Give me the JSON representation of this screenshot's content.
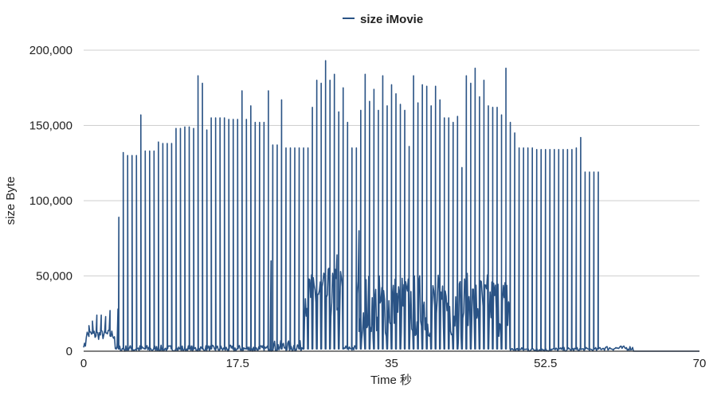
{
  "chart_data": {
    "type": "line",
    "title": "",
    "xlabel": "Time 秒",
    "ylabel": "size Byte",
    "xlim": [
      0,
      70
    ],
    "ylim": [
      0,
      200000
    ],
    "x_ticks": [
      "0",
      "17.5",
      "35",
      "52.5",
      "70"
    ],
    "y_ticks": [
      "0",
      "50,000",
      "100,000",
      "150,000",
      "200,000"
    ],
    "grid": "horizontal",
    "legend_position": "top-center",
    "series": [
      {
        "name": "size iMovie",
        "color": "#2a5385",
        "spikes": [
          [
            4.0,
            89000
          ],
          [
            4.5,
            132000
          ],
          [
            5.0,
            130000
          ],
          [
            5.5,
            130000
          ],
          [
            6.0,
            130000
          ],
          [
            6.5,
            157000
          ],
          [
            7.0,
            133000
          ],
          [
            7.5,
            133000
          ],
          [
            8.0,
            133000
          ],
          [
            8.5,
            139000
          ],
          [
            9.0,
            138000
          ],
          [
            9.5,
            138000
          ],
          [
            10.0,
            138000
          ],
          [
            10.5,
            148000
          ],
          [
            11.0,
            148000
          ],
          [
            11.5,
            149000
          ],
          [
            12.0,
            149000
          ],
          [
            12.5,
            148000
          ],
          [
            13.0,
            183000
          ],
          [
            13.5,
            178000
          ],
          [
            14.0,
            147000
          ],
          [
            14.5,
            155000
          ],
          [
            15.0,
            155000
          ],
          [
            15.5,
            155000
          ],
          [
            16.0,
            155000
          ],
          [
            16.5,
            154000
          ],
          [
            17.0,
            154000
          ],
          [
            17.5,
            154000
          ],
          [
            18.0,
            173000
          ],
          [
            18.5,
            154000
          ],
          [
            19.0,
            163000
          ],
          [
            19.5,
            152000
          ],
          [
            20.0,
            152000
          ],
          [
            20.5,
            152000
          ],
          [
            21.0,
            173000
          ],
          [
            21.5,
            137000
          ],
          [
            22.0,
            137000
          ],
          [
            22.5,
            167000
          ],
          [
            23.0,
            135000
          ],
          [
            23.5,
            135000
          ],
          [
            24.0,
            135000
          ],
          [
            24.5,
            135000
          ],
          [
            25.0,
            135000
          ],
          [
            25.5,
            135000
          ],
          [
            26.0,
            162000
          ],
          [
            26.5,
            180000
          ],
          [
            27.0,
            178000
          ],
          [
            27.5,
            193000
          ],
          [
            28.0,
            180000
          ],
          [
            28.5,
            184000
          ],
          [
            29.0,
            159000
          ],
          [
            29.5,
            175000
          ],
          [
            30.0,
            152000
          ],
          [
            30.5,
            135000
          ],
          [
            31.0,
            135000
          ],
          [
            31.5,
            160000
          ],
          [
            32.0,
            184000
          ],
          [
            32.5,
            166000
          ],
          [
            33.0,
            174000
          ],
          [
            33.5,
            160000
          ],
          [
            34.0,
            183000
          ],
          [
            34.5,
            163000
          ],
          [
            35.0,
            177000
          ],
          [
            35.5,
            171000
          ],
          [
            36.0,
            164000
          ],
          [
            36.5,
            160000
          ],
          [
            37.0,
            136000
          ],
          [
            37.5,
            183000
          ],
          [
            38.0,
            165000
          ],
          [
            38.5,
            177000
          ],
          [
            39.0,
            176000
          ],
          [
            39.5,
            163000
          ],
          [
            40.0,
            176000
          ],
          [
            40.5,
            167000
          ],
          [
            41.0,
            155000
          ],
          [
            41.5,
            155000
          ],
          [
            42.0,
            152000
          ],
          [
            42.5,
            156000
          ],
          [
            43.0,
            122000
          ],
          [
            43.5,
            183000
          ],
          [
            44.0,
            178000
          ],
          [
            44.5,
            188000
          ],
          [
            45.0,
            169000
          ],
          [
            45.5,
            180000
          ],
          [
            46.0,
            163000
          ],
          [
            46.5,
            162000
          ],
          [
            47.0,
            162000
          ],
          [
            47.5,
            157000
          ],
          [
            48.0,
            188000
          ],
          [
            48.5,
            152000
          ],
          [
            49.0,
            145000
          ],
          [
            49.5,
            135000
          ],
          [
            50.0,
            135000
          ],
          [
            50.5,
            135000
          ],
          [
            51.0,
            135000
          ],
          [
            51.5,
            134000
          ],
          [
            52.0,
            134000
          ],
          [
            52.5,
            134000
          ],
          [
            53.0,
            134000
          ],
          [
            53.5,
            134000
          ],
          [
            54.0,
            134000
          ],
          [
            54.5,
            134000
          ],
          [
            55.0,
            134000
          ],
          [
            55.5,
            134000
          ],
          [
            56.0,
            135000
          ],
          [
            56.5,
            142000
          ],
          [
            57.0,
            119000
          ],
          [
            57.5,
            119000
          ],
          [
            58.0,
            119000
          ],
          [
            58.5,
            119000
          ]
        ],
        "baseline_segments": [
          {
            "x_start": 0.0,
            "x_end": 0.3,
            "level": 4000,
            "noise": 1500
          },
          {
            "x_start": 0.3,
            "x_end": 3.6,
            "level": 11000,
            "noise": 3500
          },
          {
            "x_start": 3.6,
            "x_end": 4.0,
            "level": 2000,
            "noise": 1500
          },
          {
            "x_start": 4.0,
            "x_end": 21.0,
            "level": 1500,
            "noise": 2500
          },
          {
            "x_start": 21.0,
            "x_end": 25.0,
            "level": 3000,
            "noise": 4000
          },
          {
            "x_start": 25.0,
            "x_end": 29.5,
            "level": 38000,
            "noise": 18000
          },
          {
            "x_start": 29.5,
            "x_end": 31.0,
            "level": 2000,
            "noise": 2000
          },
          {
            "x_start": 31.0,
            "x_end": 48.5,
            "level": 30000,
            "noise": 22000
          },
          {
            "x_start": 48.5,
            "x_end": 58.5,
            "level": 1000,
            "noise": 1500
          },
          {
            "x_start": 58.5,
            "x_end": 62.5,
            "level": 2000,
            "noise": 1500
          },
          {
            "x_start": 62.5,
            "x_end": 70.0,
            "level": 0,
            "noise": 0
          }
        ],
        "mid_peaks": [
          [
            0.6,
            17000
          ],
          [
            1.0,
            20000
          ],
          [
            1.5,
            24000
          ],
          [
            2.0,
            24000
          ],
          [
            2.5,
            23000
          ],
          [
            3.0,
            27000
          ],
          [
            3.9,
            28000
          ],
          [
            21.0,
            90000
          ],
          [
            21.3,
            60000
          ],
          [
            25.5,
            63000
          ],
          [
            27.0,
            62000
          ],
          [
            28.0,
            60000
          ],
          [
            28.8,
            64000
          ],
          [
            31.0,
            84000
          ],
          [
            31.3,
            80000
          ],
          [
            33.5,
            52000
          ],
          [
            36.0,
            55000
          ],
          [
            39.0,
            50000
          ],
          [
            41.0,
            50000
          ],
          [
            44.0,
            58000
          ],
          [
            45.5,
            62000
          ],
          [
            46.5,
            58000
          ],
          [
            47.5,
            52000
          ],
          [
            48.0,
            65000
          ],
          [
            56.0,
            91000
          ]
        ]
      }
    ]
  }
}
